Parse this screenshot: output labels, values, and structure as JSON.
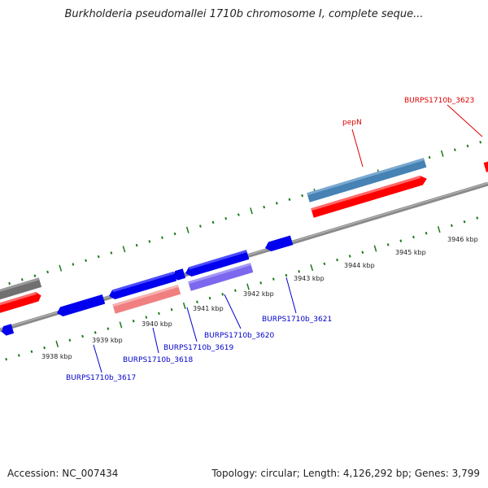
{
  "title": "Burkholderia pseudomallei 1710b chromosome I, complete seque...",
  "footer": {
    "accession": "Accession: NC_007434",
    "summary": "Topology: circular; Length: 4,126,292 bp; Genes: 3,799"
  },
  "colors": {
    "backbone": "#8a8a8a",
    "tick": "#1a7a1a",
    "gene_label_blue": "#0000cc",
    "gene_label_red": "#dd0000",
    "forward_blue": "#4682b4",
    "forward_red": "#ff0000",
    "reverse_blue": "#0000ee",
    "reverse_pink": "#f08080",
    "reverse_purple": "#7b68ee",
    "gray": "#707070"
  },
  "kbp_labels": [
    "3938 kbp",
    "3939 kbp",
    "3940 kbp",
    "3941 kbp",
    "3942 kbp",
    "3943 kbp",
    "3944 kbp",
    "3945 kbp",
    "3946 kbp"
  ],
  "gene_labels": [
    {
      "text": "BURPS1710b_3617",
      "color": "blue"
    },
    {
      "text": "BURPS1710b_3618",
      "color": "blue"
    },
    {
      "text": "BURPS1710b_3619",
      "color": "blue"
    },
    {
      "text": "BURPS1710b_3620",
      "color": "blue"
    },
    {
      "text": "BURPS1710b_3621",
      "color": "blue"
    },
    {
      "text": "pepN",
      "color": "red"
    },
    {
      "text": "BURPS1710b_3623",
      "color": "red"
    }
  ]
}
